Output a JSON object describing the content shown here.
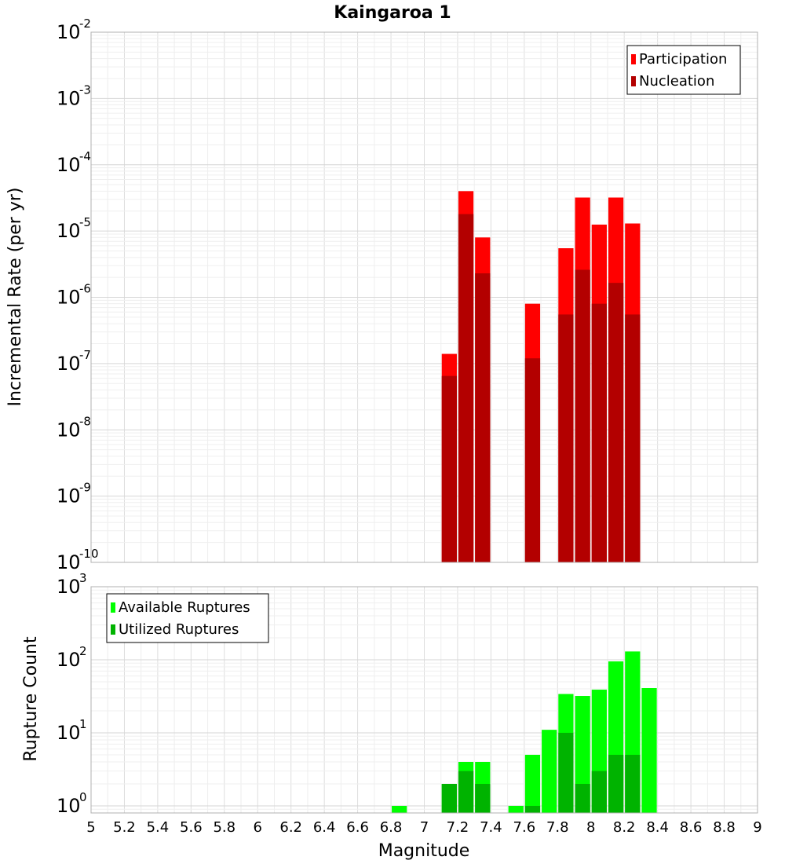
{
  "chart_data": [
    {
      "type": "bar",
      "title": "Kaingaroa 1",
      "ylabel": "Incremental Rate (per yr)",
      "yscale": "log",
      "ylim": [
        1e-10,
        0.01
      ],
      "xlim": [
        5,
        9
      ],
      "grid": true,
      "legend_position": "top-right",
      "y_ticks": [
        {
          "base": "10",
          "exp": "-10"
        },
        {
          "base": "10",
          "exp": "-9"
        },
        {
          "base": "10",
          "exp": "-8"
        },
        {
          "base": "10",
          "exp": "-7"
        },
        {
          "base": "10",
          "exp": "-6"
        },
        {
          "base": "10",
          "exp": "-5"
        },
        {
          "base": "10",
          "exp": "-4"
        },
        {
          "base": "10",
          "exp": "-3"
        },
        {
          "base": "10",
          "exp": "-2"
        }
      ],
      "series": [
        {
          "name": "Participation",
          "color": "#ff0000",
          "points": [
            {
              "x": 7.15,
              "y": 1.4e-07
            },
            {
              "x": 7.25,
              "y": 4e-05
            },
            {
              "x": 7.35,
              "y": 8e-06
            },
            {
              "x": 7.65,
              "y": 8e-07
            },
            {
              "x": 7.85,
              "y": 5.5e-06
            },
            {
              "x": 7.95,
              "y": 3.2e-05
            },
            {
              "x": 8.05,
              "y": 1.25e-05
            },
            {
              "x": 8.15,
              "y": 3.2e-05
            },
            {
              "x": 8.25,
              "y": 1.3e-05
            }
          ]
        },
        {
          "name": "Nucleation",
          "color": "#b30000",
          "points": [
            {
              "x": 7.15,
              "y": 6.5e-08
            },
            {
              "x": 7.25,
              "y": 1.8e-05
            },
            {
              "x": 7.35,
              "y": 2.3e-06
            },
            {
              "x": 7.65,
              "y": 1.2e-07
            },
            {
              "x": 7.85,
              "y": 5.5e-07
            },
            {
              "x": 7.95,
              "y": 2.6e-06
            },
            {
              "x": 8.05,
              "y": 8e-07
            },
            {
              "x": 8.15,
              "y": 1.65e-06
            },
            {
              "x": 8.25,
              "y": 5.5e-07
            }
          ]
        }
      ]
    },
    {
      "type": "bar",
      "ylabel": "Rupture Count",
      "xlabel": "Magnitude",
      "yscale": "log",
      "ylim": [
        0.8,
        1000
      ],
      "xlim": [
        5,
        9
      ],
      "grid": true,
      "legend_position": "top-left",
      "x_ticks": [
        "5",
        "5.2",
        "5.4",
        "5.6",
        "5.8",
        "6",
        "6.2",
        "6.4",
        "6.6",
        "6.8",
        "7",
        "7.2",
        "7.4",
        "7.6",
        "7.8",
        "8",
        "8.2",
        "8.4",
        "8.6",
        "8.8",
        "9"
      ],
      "y_ticks": [
        {
          "base": "10",
          "exp": "0"
        },
        {
          "base": "10",
          "exp": "1"
        },
        {
          "base": "10",
          "exp": "2"
        },
        {
          "base": "10",
          "exp": "3"
        }
      ],
      "series": [
        {
          "name": "Available Ruptures",
          "color": "#00ff00",
          "points": [
            {
              "x": 6.85,
              "y": 1
            },
            {
              "x": 7.15,
              "y": 2
            },
            {
              "x": 7.25,
              "y": 4
            },
            {
              "x": 7.35,
              "y": 4
            },
            {
              "x": 7.55,
              "y": 1
            },
            {
              "x": 7.65,
              "y": 5
            },
            {
              "x": 7.75,
              "y": 11
            },
            {
              "x": 7.85,
              "y": 34
            },
            {
              "x": 7.95,
              "y": 32
            },
            {
              "x": 8.05,
              "y": 39
            },
            {
              "x": 8.15,
              "y": 95
            },
            {
              "x": 8.25,
              "y": 130
            },
            {
              "x": 8.35,
              "y": 41
            }
          ]
        },
        {
          "name": "Utilized Ruptures",
          "color": "#00b300",
          "points": [
            {
              "x": 7.15,
              "y": 2
            },
            {
              "x": 7.25,
              "y": 3
            },
            {
              "x": 7.35,
              "y": 2
            },
            {
              "x": 7.65,
              "y": 1
            },
            {
              "x": 7.85,
              "y": 10
            },
            {
              "x": 7.95,
              "y": 2
            },
            {
              "x": 8.05,
              "y": 3
            },
            {
              "x": 8.15,
              "y": 5
            },
            {
              "x": 8.25,
              "y": 5
            }
          ]
        }
      ]
    }
  ]
}
